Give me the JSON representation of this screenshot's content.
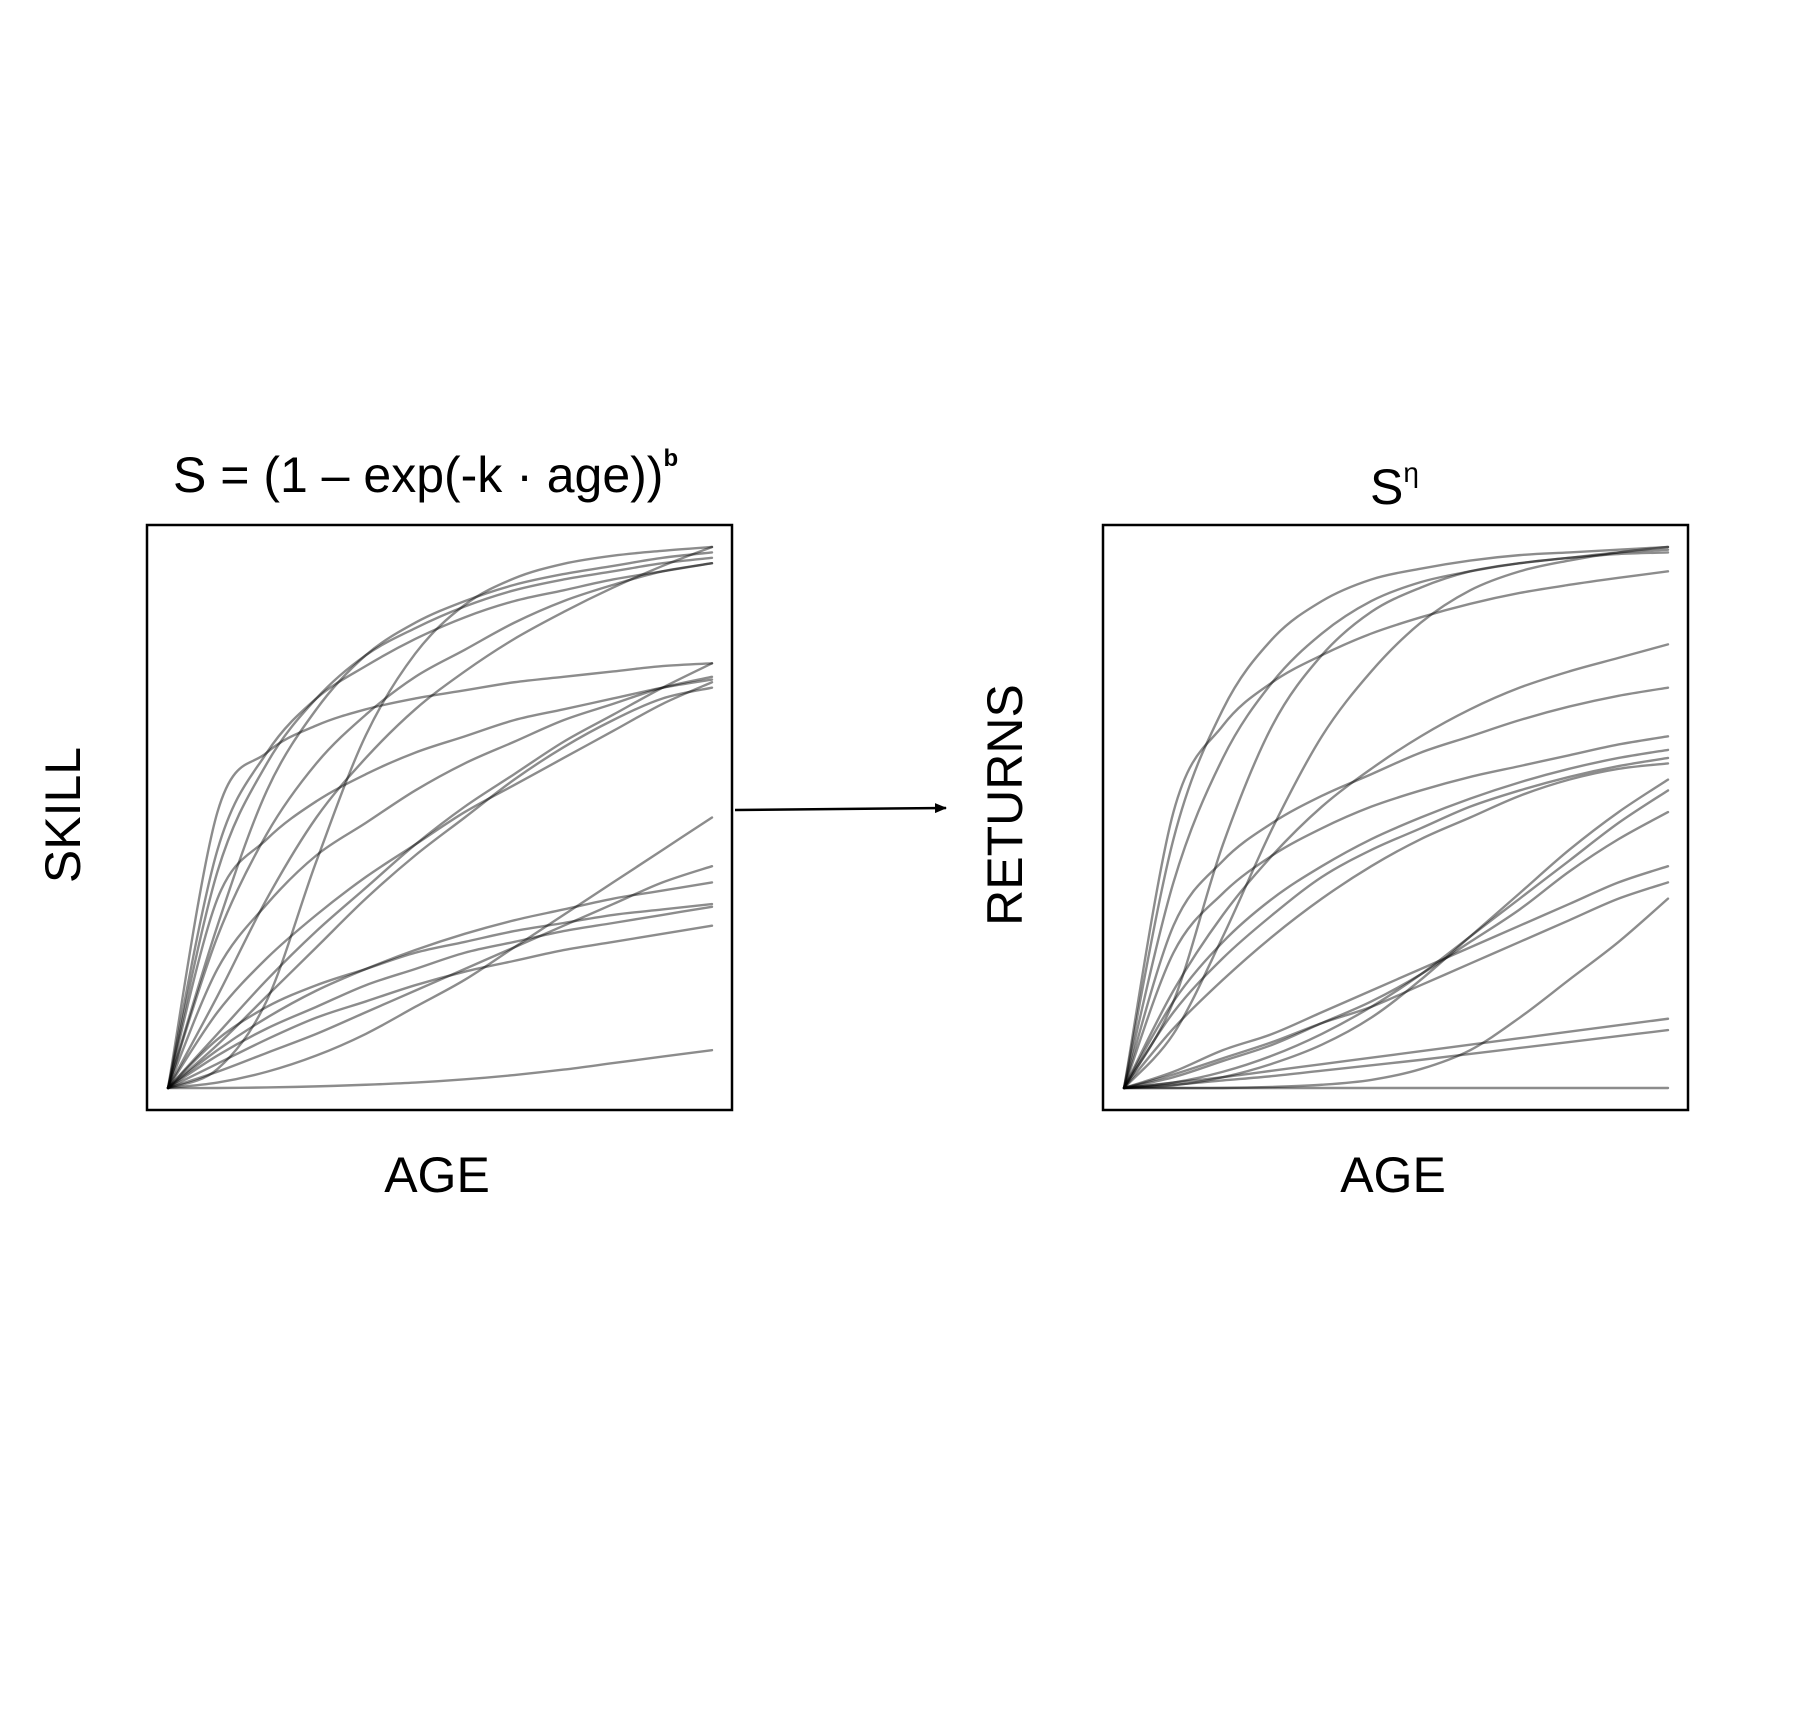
{
  "charts": [
    {
      "title": "S = (1 – exp(-k · age))",
      "title_superscript": "b",
      "xlabel": "AGE",
      "ylabel": "SKILL"
    },
    {
      "title": "S",
      "title_superscript": "η",
      "xlabel": "AGE",
      "ylabel": "RETURNS"
    }
  ],
  "chart_data": [
    {
      "type": "line",
      "title": "S = (1 – exp(-k · age))ᵇ",
      "xlabel": "AGE",
      "ylabel": "SKILL",
      "xlim": [
        0,
        1
      ],
      "ylim": [
        0,
        1
      ],
      "ticks": "none",
      "grid": false,
      "line_color": "#000000",
      "line_opacity": 0.45,
      "series": [
        {
          "values": [
            0,
            0.035,
            0.162,
            0.419,
            0.652,
            0.803,
            0.893,
            0.942,
            0.969,
            0.984,
            0.993,
            1.0
          ]
        },
        {
          "values": [
            0,
            0.17,
            0.35,
            0.5,
            0.61,
            0.7,
            0.77,
            0.83,
            0.88,
            0.925,
            0.965,
            1.0
          ]
        },
        {
          "values": [
            0,
            0.3,
            0.55,
            0.7,
            0.8,
            0.86,
            0.9,
            0.93,
            0.95,
            0.965,
            0.98,
            0.99
          ]
        },
        {
          "values": [
            0,
            0.4,
            0.6,
            0.72,
            0.8,
            0.85,
            0.89,
            0.92,
            0.94,
            0.955,
            0.97,
            0.98
          ]
        },
        {
          "values": [
            0,
            0.44,
            0.62,
            0.72,
            0.78,
            0.83,
            0.87,
            0.9,
            0.92,
            0.94,
            0.955,
            0.97
          ]
        },
        {
          "values": [
            0,
            0.28,
            0.47,
            0.6,
            0.69,
            0.76,
            0.81,
            0.86,
            0.9,
            0.93,
            0.955,
            0.97
          ]
        },
        {
          "values": [
            0,
            0.51,
            0.62,
            0.67,
            0.7,
            0.72,
            0.735,
            0.75,
            0.76,
            0.77,
            0.78,
            0.785
          ]
        },
        {
          "values": [
            0,
            0.35,
            0.46,
            0.53,
            0.58,
            0.62,
            0.65,
            0.68,
            0.7,
            0.72,
            0.74,
            0.755
          ]
        },
        {
          "values": [
            0,
            0.22,
            0.34,
            0.43,
            0.49,
            0.55,
            0.6,
            0.64,
            0.68,
            0.71,
            0.74,
            0.76
          ]
        },
        {
          "values": [
            0,
            0.14,
            0.24,
            0.32,
            0.39,
            0.45,
            0.51,
            0.56,
            0.61,
            0.66,
            0.71,
            0.75
          ]
        },
        {
          "values": [
            0,
            0.1,
            0.2,
            0.29,
            0.37,
            0.45,
            0.52,
            0.58,
            0.64,
            0.69,
            0.74,
            0.785
          ]
        },
        {
          "values": [
            0,
            0.08,
            0.17,
            0.26,
            0.35,
            0.43,
            0.5,
            0.57,
            0.63,
            0.68,
            0.72,
            0.74
          ]
        },
        {
          "values": [
            0,
            0.07,
            0.13,
            0.18,
            0.22,
            0.255,
            0.285,
            0.31,
            0.33,
            0.35,
            0.365,
            0.38
          ]
        },
        {
          "values": [
            0,
            0.09,
            0.15,
            0.19,
            0.22,
            0.25,
            0.27,
            0.29,
            0.305,
            0.32,
            0.33,
            0.34
          ]
        },
        {
          "values": [
            0,
            0.06,
            0.11,
            0.15,
            0.19,
            0.22,
            0.25,
            0.27,
            0.29,
            0.305,
            0.32,
            0.335
          ]
        },
        {
          "values": [
            0,
            0.045,
            0.09,
            0.13,
            0.16,
            0.19,
            0.215,
            0.235,
            0.255,
            0.27,
            0.285,
            0.3
          ]
        },
        {
          "values": [
            0,
            0.01,
            0.03,
            0.06,
            0.1,
            0.15,
            0.2,
            0.26,
            0.32,
            0.38,
            0.44,
            0.5
          ]
        },
        {
          "values": [
            0,
            0.03,
            0.065,
            0.1,
            0.14,
            0.18,
            0.22,
            0.26,
            0.3,
            0.34,
            0.38,
            0.41
          ]
        },
        {
          "values": [
            0,
            0.0,
            0.001,
            0.003,
            0.006,
            0.01,
            0.016,
            0.024,
            0.034,
            0.046,
            0.058,
            0.07
          ]
        }
      ]
    },
    {
      "type": "line",
      "title": "Sⁿ",
      "xlabel": "AGE",
      "ylabel": "RETURNS",
      "xlim": [
        0,
        1
      ],
      "ylim": [
        0,
        1
      ],
      "ticks": "none",
      "grid": false,
      "line_color": "#000000",
      "line_opacity": 0.45,
      "series": [
        {
          "values": [
            0,
            0.46,
            0.7,
            0.83,
            0.9,
            0.94,
            0.96,
            0.975,
            0.985,
            0.99,
            0.995,
            1.0
          ]
        },
        {
          "values": [
            0,
            0.38,
            0.61,
            0.75,
            0.84,
            0.9,
            0.935,
            0.955,
            0.97,
            0.98,
            0.987,
            0.99
          ]
        },
        {
          "values": [
            0,
            0.51,
            0.67,
            0.75,
            0.8,
            0.84,
            0.87,
            0.895,
            0.915,
            0.93,
            0.943,
            0.955
          ]
        },
        {
          "values": [
            0,
            0.16,
            0.45,
            0.67,
            0.8,
            0.88,
            0.925,
            0.955,
            0.97,
            0.98,
            0.99,
            0.995
          ]
        },
        {
          "values": [
            0,
            0.1,
            0.28,
            0.48,
            0.65,
            0.77,
            0.86,
            0.92,
            0.955,
            0.975,
            0.99,
            1.0
          ]
        },
        {
          "values": [
            0,
            0.18,
            0.32,
            0.43,
            0.52,
            0.59,
            0.65,
            0.7,
            0.74,
            0.77,
            0.795,
            0.82
          ]
        },
        {
          "values": [
            0,
            0.3,
            0.42,
            0.49,
            0.54,
            0.58,
            0.62,
            0.65,
            0.68,
            0.705,
            0.725,
            0.74
          ]
        },
        {
          "values": [
            0,
            0.25,
            0.36,
            0.43,
            0.48,
            0.52,
            0.55,
            0.575,
            0.595,
            0.615,
            0.635,
            0.65
          ]
        },
        {
          "values": [
            0,
            0.16,
            0.27,
            0.35,
            0.41,
            0.46,
            0.5,
            0.535,
            0.565,
            0.59,
            0.61,
            0.625
          ]
        },
        {
          "values": [
            0,
            0.14,
            0.24,
            0.32,
            0.39,
            0.44,
            0.48,
            0.52,
            0.55,
            0.575,
            0.595,
            0.61
          ]
        },
        {
          "values": [
            0,
            0.11,
            0.2,
            0.28,
            0.35,
            0.41,
            0.46,
            0.5,
            0.54,
            0.57,
            0.59,
            0.6
          ]
        },
        {
          "values": [
            0,
            0.005,
            0.02,
            0.045,
            0.08,
            0.13,
            0.2,
            0.28,
            0.36,
            0.44,
            0.51,
            0.57
          ]
        },
        {
          "values": [
            0,
            0.01,
            0.03,
            0.06,
            0.1,
            0.15,
            0.21,
            0.28,
            0.35,
            0.42,
            0.49,
            0.55
          ]
        },
        {
          "values": [
            0,
            0.02,
            0.05,
            0.08,
            0.12,
            0.16,
            0.21,
            0.27,
            0.33,
            0.4,
            0.46,
            0.51
          ]
        },
        {
          "values": [
            0,
            0.03,
            0.07,
            0.1,
            0.14,
            0.18,
            0.22,
            0.26,
            0.3,
            0.34,
            0.38,
            0.41
          ]
        },
        {
          "values": [
            0,
            0.025,
            0.055,
            0.085,
            0.12,
            0.15,
            0.19,
            0.23,
            0.27,
            0.31,
            0.35,
            0.38
          ]
        },
        {
          "values": [
            0,
            0.0,
            0.0,
            0.002,
            0.006,
            0.015,
            0.035,
            0.07,
            0.13,
            0.2,
            0.27,
            0.35
          ]
        },
        {
          "values": [
            0,
            0.01,
            0.02,
            0.032,
            0.044,
            0.056,
            0.068,
            0.08,
            0.092,
            0.104,
            0.116,
            0.128
          ]
        },
        {
          "values": [
            0,
            0.006,
            0.014,
            0.022,
            0.032,
            0.042,
            0.052,
            0.063,
            0.074,
            0.085,
            0.096,
            0.107
          ]
        },
        {
          "values": [
            0,
            0.0,
            0.0,
            0.0,
            0.0,
            0.0,
            0.0,
            0.0,
            0.0,
            0.0,
            0.0,
            0.0
          ]
        }
      ]
    }
  ],
  "arrow": {
    "color": "#000000"
  }
}
